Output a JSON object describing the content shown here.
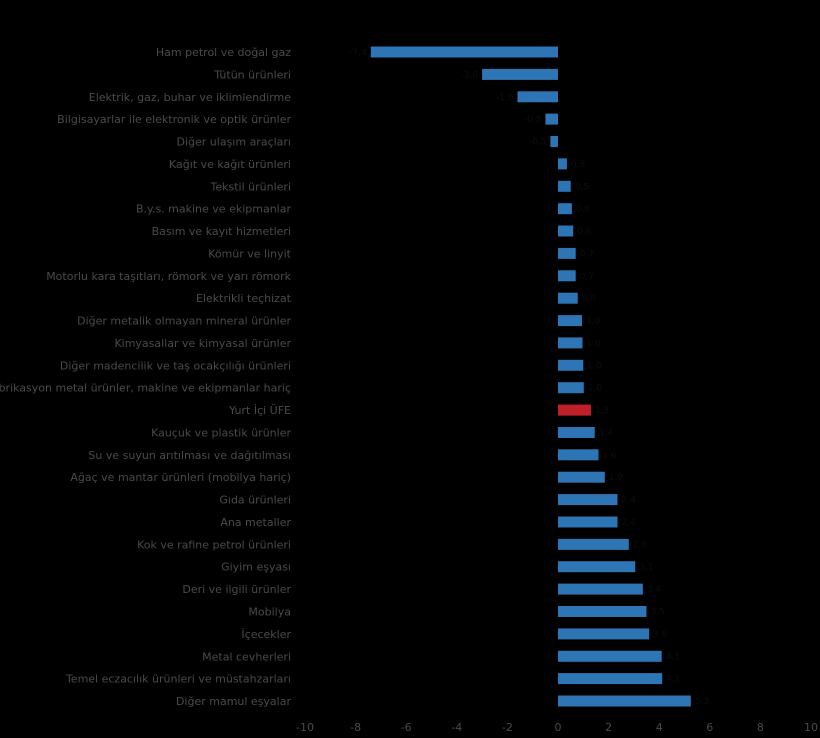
{
  "chart_data": {
    "type": "bar",
    "orientation": "horizontal",
    "categories": [
      "Ham petrol ve doğal gaz",
      "Tütün ürünleri",
      "Elektrik, gaz, buhar ve iklimlendirme",
      "Bilgisayarlar ile elektronik ve optik ürünler",
      "Diğer ulaşım araçları",
      "Kağıt ve kağıt ürünleri",
      "Tekstil ürünleri",
      "B.y.s. makine ve ekipmanlar",
      "Basım ve kayıt hizmetleri",
      "Kömür ve linyit",
      "Motorlu kara taşıtları, römork ve yarı römork",
      "Elektrikli teçhizat",
      "Diğer metalik olmayan mineral ürünler",
      "Kimyasallar ve kimyasal ürünler",
      "Diğer madencilik ve taş ocakçılığı ürünleri",
      "Fabrikasyon metal ürünler, makine ve ekipmanlar hariç",
      "Yurt İçi ÜFE",
      "Kauçuk ve plastik ürünler",
      "Su ve suyun arıtılması ve dağıtılması",
      "Ağaç ve mantar ürünleri (mobilya hariç)",
      "Gıda ürünleri",
      "Ana metaller",
      "Kok ve rafine petrol ürünleri",
      "Giyim eşyası",
      "Deri ve ilgili ürünler",
      "Mobilya",
      "İçecekler",
      "Metal cevherleri",
      "Temel eczacılık ürünleri ve müstahzarları",
      "Diğer mamul eşyalar"
    ],
    "values": [
      -7.4,
      -3.0,
      -1.6,
      -0.5,
      -0.3,
      0.35,
      0.5,
      0.55,
      0.6,
      0.7,
      0.7,
      0.78,
      0.95,
      0.97,
      1.0,
      1.02,
      1.3,
      1.45,
      1.6,
      1.85,
      2.35,
      2.35,
      2.8,
      3.05,
      3.35,
      3.5,
      3.6,
      4.1,
      4.12,
      5.25
    ],
    "value_labels": [
      "-7,4",
      "-3,0",
      "-1,6",
      "-0,5",
      "-0,3",
      "0,3",
      "0,5",
      "0,6",
      "0,6",
      "0,7",
      "0,7",
      "0,8",
      "1,0",
      "1,0",
      "1,0",
      "1,0",
      "1,3",
      "1,4",
      "1,6",
      "1,9",
      "2,4",
      "2,4",
      "2,8",
      "3,1",
      "3,4",
      "3,5",
      "3,6",
      "4,1",
      "4,1",
      "5,3"
    ],
    "highlight_index": 16,
    "xlim": [
      -10,
      10
    ],
    "xticks": [
      "-10",
      "-8",
      "-6",
      "-4",
      "-2",
      "0",
      "2",
      "4",
      "6",
      "8",
      "10"
    ],
    "xtick_values": [
      -10,
      -8,
      -6,
      -4,
      -2,
      0,
      2,
      4,
      6,
      8,
      10
    ],
    "title": "",
    "xlabel": "",
    "ylabel": "",
    "grid": false,
    "legend": "none",
    "colors": {
      "bar": "#2e75b6",
      "highlight": "#c0202a",
      "text": "#4a4a4a",
      "background": "#000000"
    }
  }
}
